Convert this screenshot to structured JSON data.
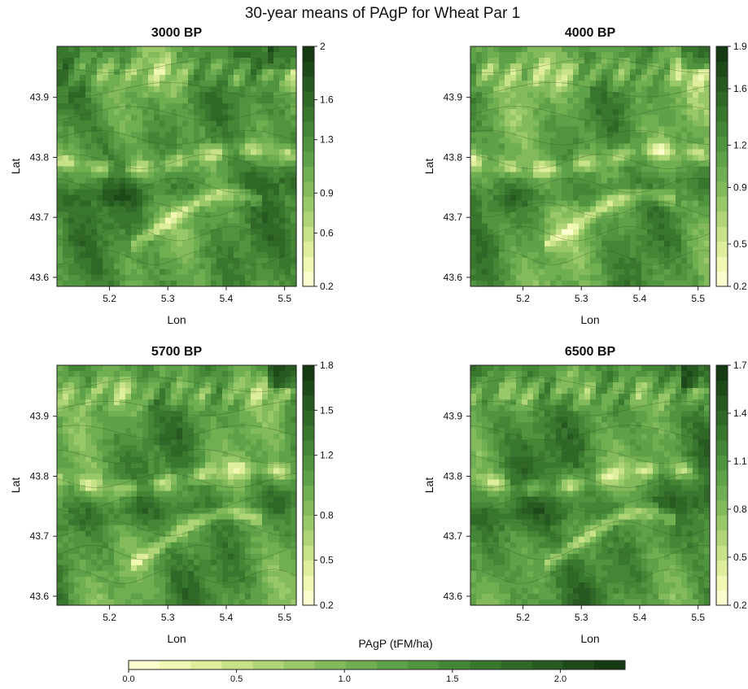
{
  "figure": {
    "title": "30-year means of PAgP for Wheat Par 1",
    "shared_legend_label": "PAgP (tFM/ha)",
    "shared_legend_ticks": [
      "0.0",
      "0.5",
      "1.0",
      "1.5",
      "2.0"
    ],
    "shared_legend_range": [
      0,
      2.3
    ]
  },
  "palette": [
    "#fdfecf",
    "#f1f8b4",
    "#dfee9c",
    "#c8e288",
    "#b0d577",
    "#98c868",
    "#83bb5c",
    "#70ae52",
    "#5fa148",
    "#51943f",
    "#458636",
    "#3a772e",
    "#306827",
    "#275a20",
    "#1e4a19",
    "#163a12"
  ],
  "chart_data": [
    {
      "type": "heatmap",
      "title": "3000 BP",
      "xlabel": "Lon",
      "ylabel": "Lat",
      "xlim": [
        5.11,
        5.52
      ],
      "ylim": [
        43.585,
        43.985
      ],
      "xticks": [
        "5.2",
        "5.3",
        "5.4",
        "5.5"
      ],
      "yticks": [
        "43.6",
        "43.7",
        "43.8",
        "43.9"
      ],
      "colorbar": {
        "range": [
          0.2,
          2.0
        ],
        "ticks": [
          "0.2",
          "0.6",
          "0.9",
          "1.3",
          "1.6",
          "2"
        ]
      }
    },
    {
      "type": "heatmap",
      "title": "4000 BP",
      "xlabel": "Lon",
      "ylabel": "Lat",
      "xlim": [
        5.11,
        5.52
      ],
      "ylim": [
        43.585,
        43.985
      ],
      "xticks": [
        "5.2",
        "5.3",
        "5.4",
        "5.5"
      ],
      "yticks": [
        "43.6",
        "43.7",
        "43.8",
        "43.9"
      ],
      "colorbar": {
        "range": [
          0.2,
          1.9
        ],
        "ticks": [
          "0.2",
          "0.5",
          "0.9",
          "1.2",
          "1.6",
          "1.9"
        ]
      }
    },
    {
      "type": "heatmap",
      "title": "5700 BP",
      "xlabel": "Lon",
      "ylabel": "Lat",
      "xlim": [
        5.11,
        5.52
      ],
      "ylim": [
        43.585,
        43.985
      ],
      "xticks": [
        "5.2",
        "5.3",
        "5.4",
        "5.5"
      ],
      "yticks": [
        "43.6",
        "43.7",
        "43.8",
        "43.9"
      ],
      "colorbar": {
        "range": [
          0.2,
          1.8
        ],
        "ticks": [
          "0.2",
          "0.5",
          "0.8",
          "1.2",
          "1.5",
          "1.8"
        ]
      }
    },
    {
      "type": "heatmap",
      "title": "6500 BP",
      "xlabel": "Lon",
      "ylabel": "Lat",
      "xlim": [
        5.11,
        5.52
      ],
      "ylim": [
        43.585,
        43.985
      ],
      "xticks": [
        "5.2",
        "5.3",
        "5.4",
        "5.5"
      ],
      "yticks": [
        "43.6",
        "43.7",
        "43.8",
        "43.9"
      ],
      "colorbar": {
        "range": [
          0.2,
          1.7
        ],
        "ticks": [
          "0.2",
          "0.5",
          "0.8",
          "1.1",
          "1.4",
          "1.7"
        ]
      }
    }
  ]
}
